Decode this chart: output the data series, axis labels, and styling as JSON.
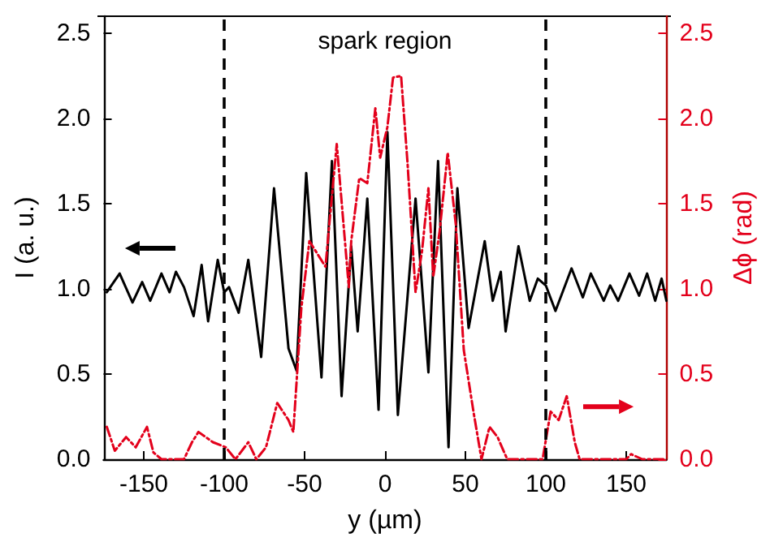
{
  "chart_data": {
    "type": "line",
    "xlabel": "y (µm)",
    "ylabel": "I (a. u.)",
    "y2label": "Δϕ (rad)",
    "annotations": [
      "spark region"
    ],
    "xlim": [
      -175,
      175
    ],
    "xticks": [
      -150,
      -100,
      -50,
      0,
      50,
      100,
      150
    ],
    "ylim": [
      0,
      2.6
    ],
    "yticks": [
      {
        "value": 0,
        "label": "0.0"
      },
      0.5,
      {
        "value": 1,
        "label": "1.0"
      },
      1.5,
      {
        "value": 2,
        "label": "2.0"
      },
      2.5
    ],
    "y2lim": [
      0,
      2.6
    ],
    "y2ticks": [
      {
        "value": 0,
        "label": "0.0"
      },
      0.5,
      {
        "value": 1,
        "label": "1.0"
      },
      1.5,
      {
        "value": 2,
        "label": "2.0"
      },
      2.5
    ],
    "grid": false,
    "marker": "none",
    "ref_lines": [
      {
        "axis": "x",
        "value": -100,
        "color": "#000000",
        "line_style": "dashed"
      },
      {
        "axis": "x",
        "value": 100,
        "color": "#000000",
        "line_style": "dashed"
      }
    ],
    "series": [
      {
        "color": "#000000",
        "line_style": "solid",
        "x": [
          -173,
          -165,
          -157,
          -151,
          -146,
          -139,
          -134,
          -130,
          -125,
          -119,
          -114,
          -110,
          -104,
          -100,
          -97,
          -91,
          -85,
          -77,
          -69,
          -60,
          -55,
          -49,
          -39.5,
          -33,
          -27,
          -21,
          -17,
          -11,
          -4,
          1.5,
          8,
          19,
          27,
          33,
          39.5,
          45,
          52,
          62,
          67,
          72,
          75,
          83,
          90,
          95,
          100,
          106,
          116,
          123,
          128,
          136,
          140,
          145,
          152,
          158,
          163,
          168,
          172,
          175
        ],
        "values": [
          0.98,
          1.09,
          0.92,
          1.04,
          0.93,
          1.09,
          0.98,
          1.1,
          1.01,
          0.84,
          1.14,
          0.81,
          1.17,
          0.98,
          1.01,
          0.86,
          1.17,
          0.6,
          1.59,
          0.65,
          0.52,
          1.68,
          0.48,
          1.75,
          0.37,
          1.25,
          0.75,
          1.53,
          0.29,
          1.92,
          0.26,
          1.53,
          0.51,
          1.75,
          0.07,
          1.59,
          0.77,
          1.28,
          0.93,
          1.1,
          0.75,
          1.25,
          0.93,
          1.06,
          1.02,
          0.87,
          1.12,
          0.95,
          1.09,
          0.93,
          1.02,
          0.93,
          1.09,
          0.96,
          1.09,
          0.93,
          1.06,
          0.93
        ]
      },
      {
        "color": "#e3001b",
        "line_style": "dashed",
        "axis": "y2",
        "x": [
          -173,
          -168,
          -161,
          -155,
          -148,
          -144,
          -139,
          -125,
          -120,
          -116,
          -107,
          -99,
          -93,
          -85,
          -80,
          -74,
          -67,
          -60,
          -57,
          -52,
          -47,
          -41,
          -37,
          -35,
          -30,
          -22.5,
          -21,
          -16,
          -11,
          -6,
          -3,
          1.5,
          5,
          10,
          14,
          19,
          23,
          27,
          30,
          34,
          39,
          44,
          49,
          55,
          60,
          65,
          70,
          76,
          98,
          103,
          108,
          113,
          118,
          121,
          150,
          153,
          160,
          175
        ],
        "values": [
          0.19,
          0.05,
          0.13,
          0.07,
          0.19,
          0.04,
          0,
          0,
          0.1,
          0.16,
          0.1,
          0.07,
          0,
          0.1,
          0,
          0.07,
          0.33,
          0.23,
          0.16,
          0.89,
          1.28,
          1.19,
          1.13,
          1.34,
          1.85,
          1.01,
          1.28,
          1.65,
          1.62,
          2.06,
          1.77,
          1.95,
          2.24,
          2.25,
          1.74,
          0.98,
          1.22,
          1.59,
          1.07,
          1.34,
          1.8,
          1.38,
          0.64,
          0.28,
          0,
          0.19,
          0.13,
          0,
          0,
          0.28,
          0.23,
          0.37,
          0.1,
          0,
          0,
          0.03,
          0,
          0
        ]
      }
    ]
  }
}
